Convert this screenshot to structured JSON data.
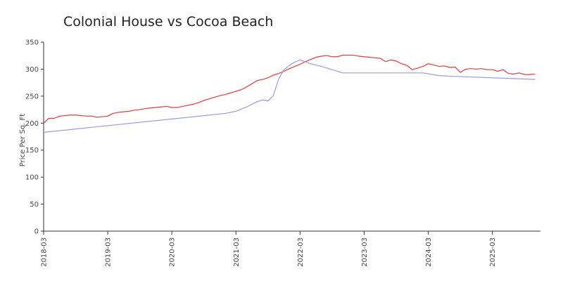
{
  "chart_data": {
    "type": "line",
    "title": "Colonial House vs Cocoa Beach",
    "xlabel": "",
    "ylabel": "Price Per Sq. Ft",
    "ylim": [
      0,
      350
    ],
    "yticks": [
      0,
      50,
      100,
      150,
      200,
      250,
      300,
      350
    ],
    "xlim": [
      "2018-03",
      "2025-12"
    ],
    "xticks": [
      "2018-03",
      "2019-03",
      "2020-03",
      "2021-03",
      "2022-03",
      "2023-03",
      "2024-03",
      "2025-03"
    ],
    "grid": false,
    "legend": "none",
    "series": [
      {
        "color": "#e83a3a",
        "points": [
          [
            "2018-03",
            200
          ],
          [
            "2018-04",
            209
          ],
          [
            "2018-05",
            209
          ],
          [
            "2018-06",
            213
          ],
          [
            "2018-07",
            214
          ],
          [
            "2018-08",
            215
          ],
          [
            "2018-09",
            215
          ],
          [
            "2018-10",
            214
          ],
          [
            "2018-11",
            213
          ],
          [
            "2018-12",
            213
          ],
          [
            "2019-01",
            211
          ],
          [
            "2019-02",
            212
          ],
          [
            "2019-03",
            213
          ],
          [
            "2019-04",
            218
          ],
          [
            "2019-05",
            220
          ],
          [
            "2019-06",
            221
          ],
          [
            "2019-07",
            222
          ],
          [
            "2019-08",
            224
          ],
          [
            "2019-09",
            225
          ],
          [
            "2019-10",
            227
          ],
          [
            "2019-11",
            228
          ],
          [
            "2019-12",
            229
          ],
          [
            "2020-01",
            230
          ],
          [
            "2020-02",
            231
          ],
          [
            "2020-03",
            229
          ],
          [
            "2020-04",
            229
          ],
          [
            "2020-05",
            231
          ],
          [
            "2020-06",
            233
          ],
          [
            "2020-07",
            235
          ],
          [
            "2020-08",
            238
          ],
          [
            "2020-09",
            242
          ],
          [
            "2020-10",
            245
          ],
          [
            "2020-11",
            248
          ],
          [
            "2020-12",
            251
          ],
          [
            "2021-01",
            253
          ],
          [
            "2021-02",
            256
          ],
          [
            "2021-03",
            259
          ],
          [
            "2021-04",
            262
          ],
          [
            "2021-05",
            267
          ],
          [
            "2021-06",
            273
          ],
          [
            "2021-07",
            279
          ],
          [
            "2021-08",
            281
          ],
          [
            "2021-09",
            284
          ],
          [
            "2021-10",
            289
          ],
          [
            "2021-11",
            292
          ],
          [
            "2021-12",
            296
          ],
          [
            "2022-01",
            301
          ],
          [
            "2022-02",
            305
          ],
          [
            "2022-03",
            309
          ],
          [
            "2022-04",
            314
          ],
          [
            "2022-05",
            318
          ],
          [
            "2022-06",
            322
          ],
          [
            "2022-07",
            324
          ],
          [
            "2022-08",
            325
          ],
          [
            "2022-09",
            323
          ],
          [
            "2022-10",
            323
          ],
          [
            "2022-11",
            326
          ],
          [
            "2022-12",
            326
          ],
          [
            "2023-01",
            326
          ],
          [
            "2023-02",
            324
          ],
          [
            "2023-03",
            323
          ],
          [
            "2023-04",
            322
          ],
          [
            "2023-05",
            321
          ],
          [
            "2023-06",
            320
          ],
          [
            "2023-07",
            314
          ],
          [
            "2023-08",
            317
          ],
          [
            "2023-09",
            315
          ],
          [
            "2023-10",
            310
          ],
          [
            "2023-11",
            307
          ],
          [
            "2023-12",
            299
          ],
          [
            "2024-01",
            302
          ],
          [
            "2024-02",
            305
          ],
          [
            "2024-03",
            310
          ],
          [
            "2024-04",
            308
          ],
          [
            "2024-05",
            305
          ],
          [
            "2024-06",
            306
          ],
          [
            "2024-07",
            303
          ],
          [
            "2024-08",
            304
          ],
          [
            "2024-09",
            294
          ],
          [
            "2024-10",
            300
          ],
          [
            "2024-11",
            301
          ],
          [
            "2024-12",
            300
          ],
          [
            "2025-01",
            301
          ],
          [
            "2025-02",
            299
          ],
          [
            "2025-03",
            299
          ],
          [
            "2025-04",
            296
          ],
          [
            "2025-05",
            299
          ],
          [
            "2025-06",
            292
          ],
          [
            "2025-07",
            291
          ],
          [
            "2025-08",
            293
          ],
          [
            "2025-09",
            290
          ],
          [
            "2025-10",
            290
          ],
          [
            "2025-11",
            291
          ]
        ]
      },
      {
        "color": "#9a9aec",
        "points": [
          [
            "2018-03",
            183
          ],
          [
            "2021-01",
            218
          ],
          [
            "2021-03",
            222
          ],
          [
            "2021-05",
            230
          ],
          [
            "2021-07",
            240
          ],
          [
            "2021-08",
            243
          ],
          [
            "2021-09",
            241
          ],
          [
            "2021-10",
            251
          ],
          [
            "2021-11",
            282
          ],
          [
            "2021-12",
            299
          ],
          [
            "2022-01",
            307
          ],
          [
            "2022-02",
            313
          ],
          [
            "2022-03",
            317
          ],
          [
            "2022-05",
            310
          ],
          [
            "2022-07",
            305
          ],
          [
            "2022-09",
            299
          ],
          [
            "2022-11",
            293
          ],
          [
            "2024-02",
            293
          ],
          [
            "2024-05",
            288
          ],
          [
            "2024-07",
            287
          ],
          [
            "2025-03",
            284
          ],
          [
            "2025-11",
            281
          ]
        ]
      }
    ]
  }
}
